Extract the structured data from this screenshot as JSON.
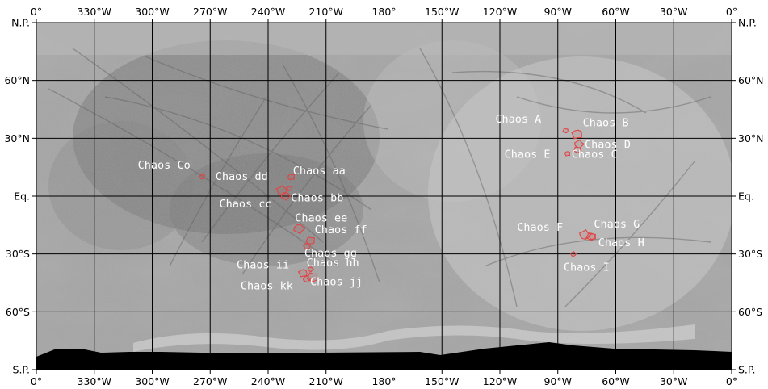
{
  "map": {
    "lon_ticks": [
      "0°",
      "330°W",
      "300°W",
      "270°W",
      "240°W",
      "210°W",
      "180°",
      "150°W",
      "120°W",
      "90°W",
      "60°W",
      "30°W",
      "0°"
    ],
    "lat_ticks": [
      "N.P.",
      "60°N",
      "30°N",
      "Eq.",
      "30°S",
      "60°S",
      "S.P."
    ],
    "colors": {
      "frame": "#000000",
      "outline": "#e04545",
      "label": "#ffffff",
      "terrain_base": "#a2a2a2",
      "terrain_dark": "#6b6b6b",
      "terrain_light": "#d2d2d2",
      "nodata": "#000000"
    },
    "features": [
      {
        "name": "Chaos Co",
        "lon": 274,
        "lat": 10
      },
      {
        "name": "Chaos dd",
        "lon": 233,
        "lat": 3
      },
      {
        "name": "Chaos cc",
        "lon": 231,
        "lat": 0
      },
      {
        "name": "Chaos aa",
        "lon": 228,
        "lat": 10
      },
      {
        "name": "Chaos bb",
        "lon": 229,
        "lat": 4
      },
      {
        "name": "Chaos ee",
        "lon": 224,
        "lat": -17
      },
      {
        "name": "Chaos ff",
        "lon": 218,
        "lat": -23
      },
      {
        "name": "Chaos gg",
        "lon": 220,
        "lat": -26
      },
      {
        "name": "Chaos hh",
        "lon": 218,
        "lat": -38
      },
      {
        "name": "Chaos jj",
        "lon": 217,
        "lat": -42
      },
      {
        "name": "Chaos ii",
        "lon": 222,
        "lat": -40
      },
      {
        "name": "Chaos kk",
        "lon": 220,
        "lat": -43
      },
      {
        "name": "Chaos A",
        "lon": 86,
        "lat": 34
      },
      {
        "name": "Chaos B",
        "lon": 80,
        "lat": 32
      },
      {
        "name": "Chaos D",
        "lon": 79,
        "lat": 27
      },
      {
        "name": "Chaos E",
        "lon": 80,
        "lat": 24
      },
      {
        "name": "Chaos C",
        "lon": 85,
        "lat": 22
      },
      {
        "name": "Chaos F",
        "lon": 76,
        "lat": -20
      },
      {
        "name": "Chaos G",
        "lon": 73,
        "lat": -21
      },
      {
        "name": "Chaos H",
        "lon": 72,
        "lat": -21
      },
      {
        "name": "Chaos I",
        "lon": 82,
        "lat": -30
      }
    ]
  }
}
